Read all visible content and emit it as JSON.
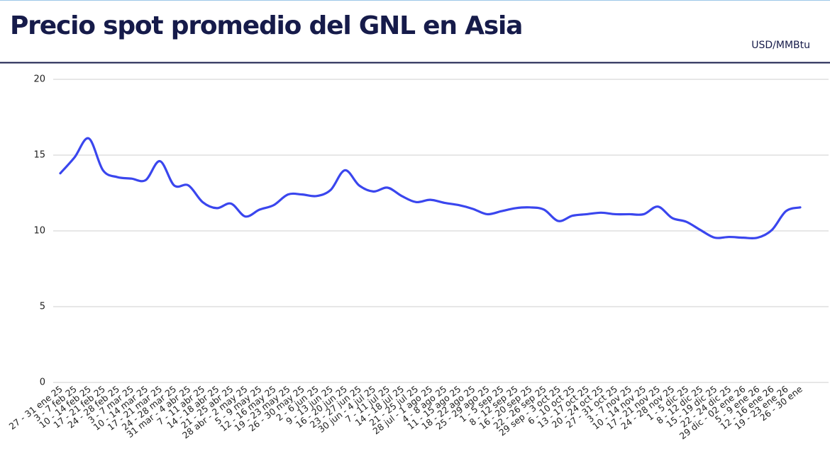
{
  "chart_data": {
    "type": "line",
    "title": "Precio spot promedio del GNL en Asia",
    "y_label": "USD/MMBtu",
    "categories": [
      "27 - 31 ene 25",
      "3 - 7 feb 25",
      "10 - 14 feb 25",
      "17 - 21 feb 25",
      "24 - 28 feb 25",
      "3 - 7 mar 25",
      "10 - 14 mar 25",
      "17 - 21 mar 25",
      "24 - 28 mar 25",
      "31 mar - 4 abr 25",
      "7 - 11 abr 25",
      "14 - 18 abr 25",
      "21 - 25 abr 25",
      "28 abr - 2 may 25",
      "5 - 9 may 25",
      "12 - 16 may 25",
      "19 - 23 may 25",
      "26 - 30 may 25",
      "2 - 6 jun 25",
      "9 - 13 jun 25",
      "16 - 20 jun 25",
      "23 - 27 jun 25",
      "30 jun - 4 jul 25",
      "7 - 11 jul 25",
      "14 - 18 jul 25",
      "21 - 25 jul 25",
      "28 jul - 1 ago 25",
      "4 - 8 ago 25",
      "11 - 15 ago 25",
      "18 - 22 ago 25",
      "25 - 29 ago 25",
      "1 - 5 sep 25",
      "8 - 12 sep 25",
      "16 - 20 sep 25",
      "22 - 26 sep 25",
      "29 sep - 3 oct 25",
      "6 - 10 oct 25",
      "13 - 17 oct 25",
      "20 - 24 oct 25",
      "27 - 31 oct 25",
      "3 - 7 nov 25",
      "10 - 14 nov 25",
      "17 - 21 nov 25",
      "24 - 28 nov 25",
      "1 - 5 dic 25",
      "8 - 12 dic 25",
      "15 - 19 dic 25",
      "22 - 24 dic 25",
      "29 dic - 02 ene 26",
      "5 - 9 ene 26",
      "12 - 16 ene 26",
      "19 - 23 ene 26",
      "26 - 30 ene"
    ],
    "series": [
      {
        "name": "Precio spot",
        "color": "#3a46ee",
        "values": [
          13.8,
          14.85,
          16.1,
          14.0,
          13.55,
          13.45,
          13.35,
          14.6,
          13.0,
          13.0,
          11.9,
          11.5,
          11.8,
          10.95,
          11.4,
          11.7,
          12.4,
          12.4,
          12.3,
          12.7,
          14.0,
          13.0,
          12.6,
          12.85,
          12.3,
          11.9,
          12.05,
          11.85,
          11.7,
          11.45,
          11.1,
          11.3,
          11.5,
          11.55,
          11.4,
          10.65,
          11.0,
          11.1,
          11.2,
          11.1,
          11.1,
          11.1,
          11.6,
          10.85,
          10.6,
          10.05,
          9.55,
          9.6,
          9.55,
          9.55,
          10.05,
          11.3,
          11.55
        ]
      }
    ],
    "ylim": [
      0,
      20
    ],
    "yticks": [
      0,
      5,
      10,
      15,
      20
    ],
    "grid": true
  }
}
